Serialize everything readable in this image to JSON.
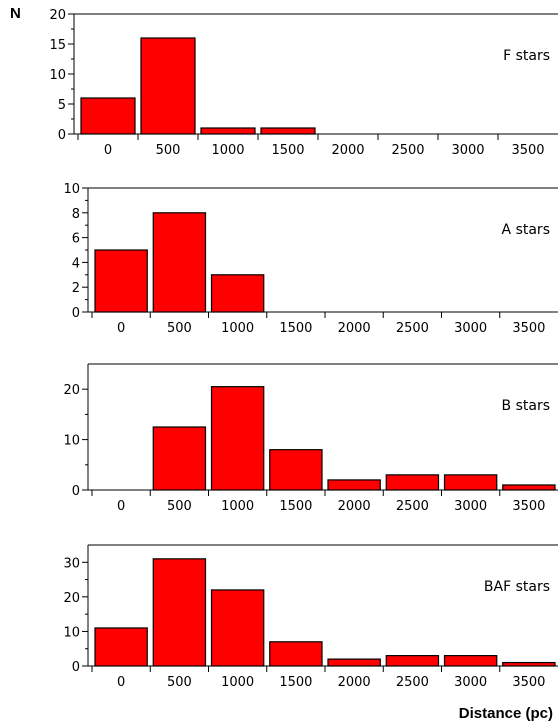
{
  "figure": {
    "y_axis_title": "N",
    "x_axis_title": "Distance (pc)"
  },
  "chart_data": [
    {
      "type": "bar",
      "label": "F stars",
      "categories": [
        "0",
        "500",
        "1000",
        "1500",
        "2000",
        "2500",
        "3000",
        "3500"
      ],
      "values": [
        6,
        16,
        1,
        1,
        0,
        0,
        0,
        0
      ],
      "yticks": [
        0,
        5,
        10,
        15,
        20
      ],
      "ylim": [
        0,
        20
      ],
      "bar_color": "#ff0000"
    },
    {
      "type": "bar",
      "label": "A stars",
      "categories": [
        "0",
        "500",
        "1000",
        "1500",
        "2000",
        "2500",
        "3000",
        "3500"
      ],
      "values": [
        5,
        8,
        3,
        0,
        0,
        0,
        0,
        0
      ],
      "yticks": [
        0,
        2,
        4,
        6,
        8,
        10
      ],
      "ylim": [
        0,
        10
      ],
      "bar_color": "#ff0000"
    },
    {
      "type": "bar",
      "label": "B stars",
      "categories": [
        "0",
        "500",
        "1000",
        "1500",
        "2000",
        "2500",
        "3000",
        "3500"
      ],
      "values": [
        0,
        12.5,
        20.5,
        8,
        2,
        3,
        3,
        1
      ],
      "yticks": [
        0,
        10,
        20
      ],
      "ylim": [
        0,
        25
      ],
      "bar_color": "#ff0000"
    },
    {
      "type": "bar",
      "label": "BAF stars",
      "categories": [
        "0",
        "500",
        "1000",
        "1500",
        "2000",
        "2500",
        "3000",
        "3500"
      ],
      "values": [
        11,
        31,
        22,
        7,
        2,
        3,
        3,
        1
      ],
      "yticks": [
        0,
        10,
        20,
        30
      ],
      "ylim": [
        0,
        35
      ],
      "bar_color": "#ff0000"
    }
  ]
}
